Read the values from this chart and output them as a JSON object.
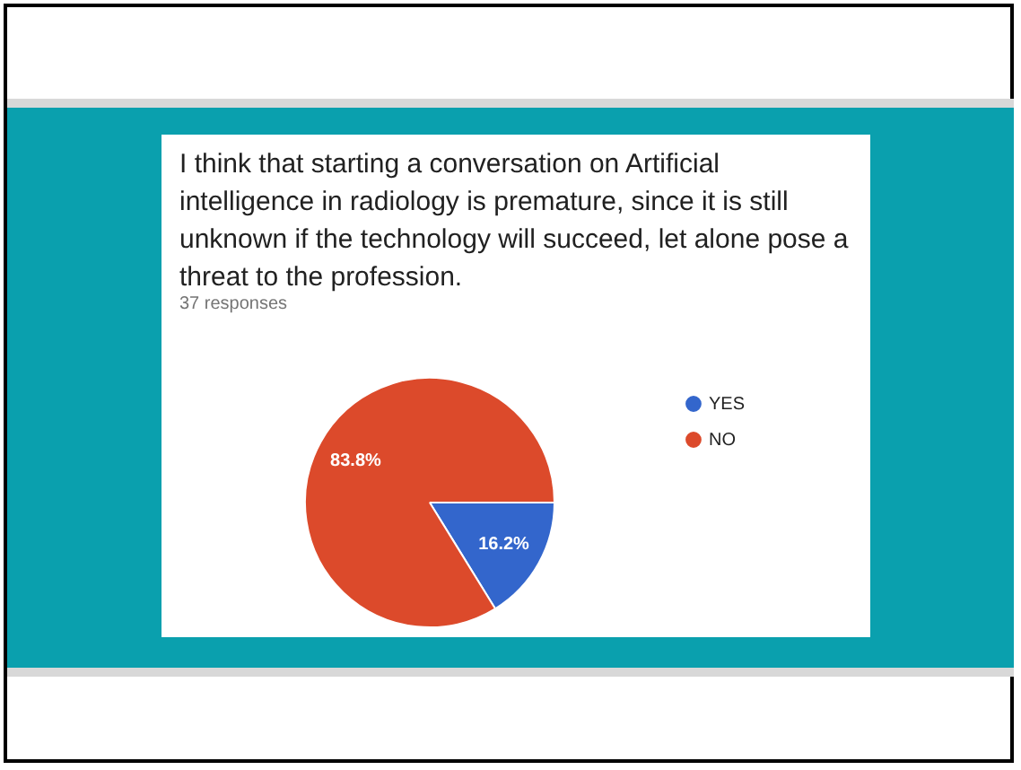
{
  "chart_data": {
    "type": "pie",
    "title": "I think that starting a conversation on Artificial intelligence in radiology is premature, since it is still unknown if the technology will succeed, let alone pose a threat to the profession.",
    "subtitle": "37 responses",
    "categories": [
      "YES",
      "NO"
    ],
    "values": [
      16.2,
      83.8
    ],
    "colors": [
      "#3366cc",
      "#dc4a2b"
    ],
    "value_labels": [
      "16.2%",
      "83.8%"
    ],
    "legend": "right"
  }
}
